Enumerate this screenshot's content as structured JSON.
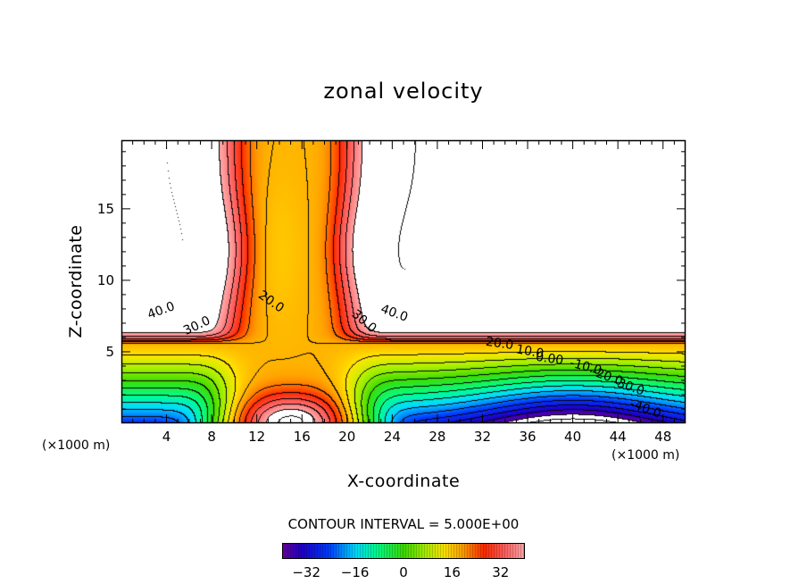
{
  "chart_data": {
    "type": "heatmap",
    "subtype": "filled-contour",
    "title": "zonal velocity",
    "xlabel": "X-coordinate",
    "ylabel": "Z-coordinate",
    "x_unit_label": "(×1000 m)",
    "xlim": [
      0,
      50
    ],
    "ylim": [
      0,
      19.8
    ],
    "x_ticks": [
      "4",
      "8",
      "12",
      "16",
      "20",
      "24",
      "28",
      "32",
      "36",
      "40",
      "44",
      "48"
    ],
    "y_ticks": [
      "5",
      "10",
      "15"
    ],
    "contour_interval_text": "CONTOUR INTERVAL = 5.000E+00",
    "contour_interval": 5,
    "contour_labels": [
      "40.0",
      "30.0",
      "20.0",
      "30.0",
      "40.0",
      "20.0",
      "10.0",
      "0.00",
      "-10.0",
      "-20.0",
      "-30.0",
      "-40.0"
    ],
    "colorbar": {
      "range": [
        -40,
        40
      ],
      "ticks": [
        "−32",
        "−16",
        "0",
        "16",
        "32"
      ]
    },
    "colors": {
      "min": "#6400a0",
      "zero": "#3cdc00",
      "max": "#ffaaaa",
      "out_of_range": "#ffffff"
    }
  }
}
